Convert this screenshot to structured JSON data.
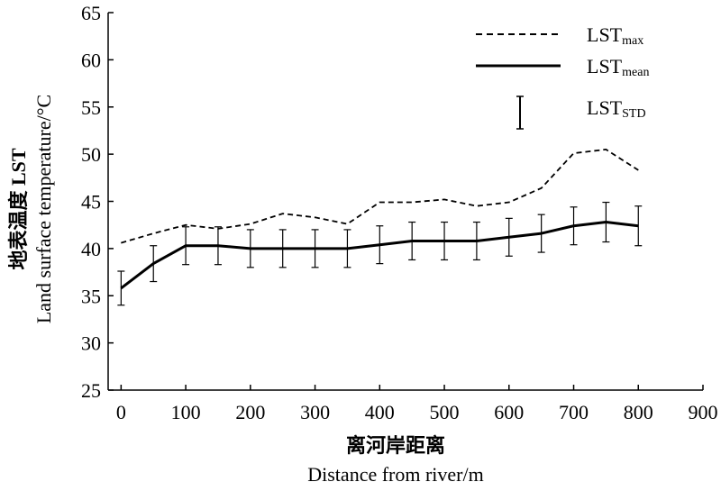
{
  "chart_data": {
    "type": "line",
    "xlabel_cn": "离河岸距离",
    "xlabel_en": "Distance from river/m",
    "ylabel_cn": "地表温度 LST",
    "ylabel_en": "Land surface temperature/°C",
    "xlim": [
      -20,
      900
    ],
    "ylim": [
      25,
      65
    ],
    "xticks": [
      0,
      100,
      200,
      300,
      400,
      500,
      600,
      700,
      800,
      900
    ],
    "yticks": [
      25,
      30,
      35,
      40,
      45,
      50,
      55,
      60,
      65
    ],
    "x": [
      0,
      50,
      100,
      150,
      200,
      250,
      300,
      350,
      400,
      450,
      500,
      550,
      600,
      650,
      700,
      750,
      800
    ],
    "series": [
      {
        "name": "LSTmax",
        "legend_main": "LST",
        "legend_sub": "max",
        "style": "dashed",
        "values": [
          40.6,
          41.6,
          42.5,
          42.1,
          42.6,
          43.7,
          43.3,
          42.6,
          44.9,
          44.9,
          45.2,
          44.5,
          44.9,
          46.4,
          50.1,
          50.5,
          48.3
        ]
      },
      {
        "name": "LSTmean",
        "legend_main": "LST",
        "legend_sub": "mean",
        "style": "solid",
        "values": [
          35.8,
          38.4,
          40.3,
          40.3,
          40.0,
          40.0,
          40.0,
          40.0,
          40.4,
          40.8,
          40.8,
          40.8,
          41.2,
          41.6,
          42.4,
          42.8,
          42.4
        ]
      }
    ],
    "errorbars": {
      "name": "LSTSTD",
      "legend_main": "LST",
      "legend_sub": "STD",
      "std": [
        1.8,
        1.9,
        2.0,
        2.0,
        2.0,
        2.0,
        2.0,
        2.0,
        2.0,
        2.0,
        2.0,
        2.0,
        2.0,
        2.0,
        2.0,
        2.1,
        2.1
      ]
    },
    "legend_position": "top-right",
    "grid": false
  }
}
